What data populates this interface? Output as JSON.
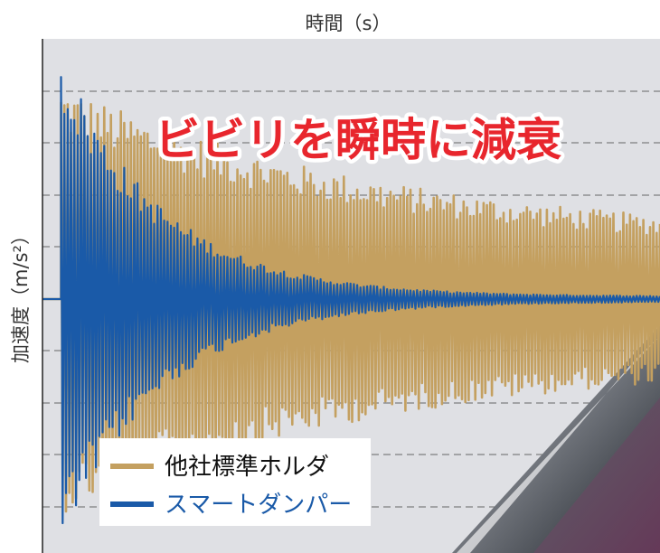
{
  "chart_data": {
    "type": "line",
    "title": "ビビリを瞬時に減衰",
    "xlabel": "時間（s）",
    "ylabel": "加速度（m/s²）",
    "grid": "horizontal-dashed",
    "legend_position": "bottom-left",
    "y_normalized_range": [
      -1,
      1
    ],
    "impact_x_fraction": 0.03,
    "series": [
      {
        "name": "他社標準ホルダ",
        "color": "#c4a060",
        "peak_amplitude": 0.82,
        "residual_amplitude": 0.22,
        "oscillation_cycles": 180,
        "decay_rate": 1.8
      },
      {
        "name": "スマートダンパー",
        "color": "#1a5aa8",
        "peak_amplitude": 0.95,
        "residual_amplitude": 0.01,
        "oscillation_cycles": 180,
        "decay_rate": 6.0
      }
    ]
  },
  "colors": {
    "plot_background": "#dfe0e4",
    "grid": "#666666",
    "headline": "#e8262d",
    "tool_overlay": "#55595f"
  }
}
